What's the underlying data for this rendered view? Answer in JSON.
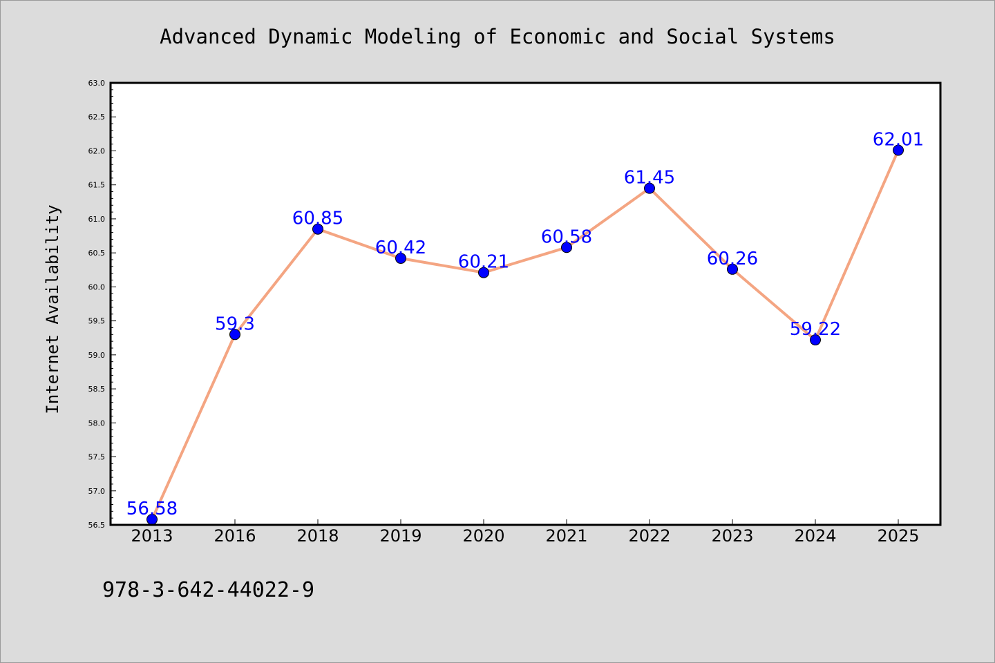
{
  "chart_data": {
    "type": "line",
    "title": "Advanced Dynamic Modeling of Economic and Social Systems",
    "xlabel": "",
    "ylabel": "Internet Availability",
    "categories": [
      "2013",
      "2016",
      "2018",
      "2019",
      "2020",
      "2021",
      "2022",
      "2023",
      "2024",
      "2025"
    ],
    "series": [
      {
        "values": [
          56.58,
          59.3,
          60.85,
          60.42,
          60.21,
          60.58,
          61.45,
          60.26,
          59.22,
          62.01
        ],
        "labels": [
          "56.58",
          "59.3",
          "60.85",
          "60.42",
          "60.21",
          "60.58",
          "61.45",
          "60.26",
          "59.22",
          "62.01"
        ],
        "line_color": "#f4a582",
        "marker_color": "#0000ff"
      }
    ],
    "ylim": [
      56.5,
      63.0
    ],
    "yticks": [
      "56.5",
      "57.0",
      "57.5",
      "58.0",
      "58.5",
      "59.0",
      "59.5",
      "60.0",
      "60.5",
      "61.0",
      "61.5",
      "62.0",
      "62.5",
      "63.0"
    ],
    "grid": false,
    "legend": "none",
    "data_label_color": "#0000ff",
    "background": "#dcdcdc",
    "plot_background": "#ffffff"
  },
  "footer": {
    "isbn": "978-3-642-44022-9"
  }
}
